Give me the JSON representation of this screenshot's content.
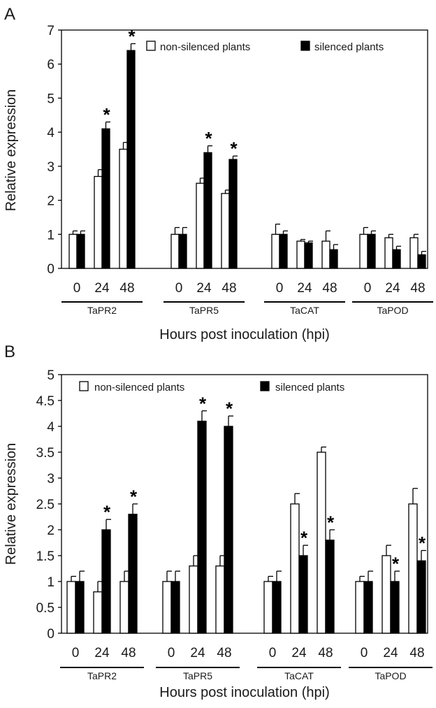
{
  "chart_data": [
    {
      "type": "bar",
      "panel_label": "A",
      "ylabel": "Relative expression",
      "xlabel": "Hours post inoculation (hpi)",
      "ylim": [
        0,
        7
      ],
      "yticks": [
        "0",
        "1",
        "2",
        "3",
        "4",
        "5",
        "6",
        "7"
      ],
      "grid": false,
      "legend_placement": "top",
      "legend": [
        {
          "name": "non-silenced plants",
          "fill": "#ffffff"
        },
        {
          "name": "silenced plants",
          "fill": "#000000"
        }
      ],
      "groups": [
        {
          "label": "TaPR2",
          "times": [
            "0",
            "24",
            "48"
          ],
          "series": [
            {
              "name": "non-silenced plants",
              "values": [
                1.0,
                2.7,
                3.5
              ],
              "errors": [
                0.1,
                0.2,
                0.2
              ]
            },
            {
              "name": "silenced plants",
              "values": [
                1.0,
                4.1,
                6.4
              ],
              "errors": [
                0.1,
                0.2,
                0.2
              ]
            }
          ],
          "significance": [
            "",
            "*",
            "*"
          ]
        },
        {
          "label": "TaPR5",
          "times": [
            "0",
            "24",
            "48"
          ],
          "series": [
            {
              "name": "non-silenced plants",
              "values": [
                1.0,
                2.5,
                2.2
              ],
              "errors": [
                0.2,
                0.15,
                0.1
              ]
            },
            {
              "name": "silenced plants",
              "values": [
                1.0,
                3.4,
                3.2
              ],
              "errors": [
                0.2,
                0.2,
                0.1
              ]
            }
          ],
          "significance": [
            "",
            "*",
            "*"
          ]
        },
        {
          "label": "TaCAT",
          "times": [
            "0",
            "24",
            "48"
          ],
          "series": [
            {
              "name": "non-silenced plants",
              "values": [
                1.0,
                0.8,
                0.8
              ],
              "errors": [
                0.3,
                0.05,
                0.3
              ]
            },
            {
              "name": "silenced plants",
              "values": [
                1.0,
                0.75,
                0.55
              ],
              "errors": [
                0.1,
                0.05,
                0.15
              ]
            }
          ],
          "significance": [
            "",
            "",
            ""
          ]
        },
        {
          "label": "TaPOD",
          "times": [
            "0",
            "24",
            "48"
          ],
          "series": [
            {
              "name": "non-silenced plants",
              "values": [
                1.0,
                0.9,
                0.9
              ],
              "errors": [
                0.2,
                0.1,
                0.1
              ]
            },
            {
              "name": "silenced plants",
              "values": [
                1.0,
                0.55,
                0.4
              ],
              "errors": [
                0.1,
                0.1,
                0.1
              ]
            }
          ],
          "significance": [
            "",
            "",
            ""
          ]
        }
      ]
    },
    {
      "type": "bar",
      "panel_label": "B",
      "ylabel": "Relative expression",
      "xlabel": "Hours post inoculation (hpi)",
      "ylim": [
        0,
        5
      ],
      "yticks": [
        "0",
        "0.5",
        "1",
        "1.5",
        "2",
        "2.5",
        "3",
        "3.5",
        "4",
        "4.5",
        "5"
      ],
      "grid": false,
      "legend_placement": "top",
      "legend": [
        {
          "name": "non-silenced plants",
          "fill": "#ffffff"
        },
        {
          "name": "silenced plants",
          "fill": "#000000"
        }
      ],
      "groups": [
        {
          "label": "TaPR2",
          "times": [
            "0",
            "24",
            "48"
          ],
          "series": [
            {
              "name": "non-silenced plants",
              "values": [
                1.0,
                0.8,
                1.0
              ],
              "errors": [
                0.1,
                0.2,
                0.2
              ]
            },
            {
              "name": "silenced plants",
              "values": [
                1.0,
                2.0,
                2.3
              ],
              "errors": [
                0.2,
                0.2,
                0.2
              ]
            }
          ],
          "significance": [
            "",
            "*",
            "*"
          ]
        },
        {
          "label": "TaPR5",
          "times": [
            "0",
            "24",
            "48"
          ],
          "series": [
            {
              "name": "non-silenced plants",
              "values": [
                1.0,
                1.3,
                1.3
              ],
              "errors": [
                0.2,
                0.2,
                0.2
              ]
            },
            {
              "name": "silenced plants",
              "values": [
                1.0,
                4.1,
                4.0
              ],
              "errors": [
                0.2,
                0.2,
                0.2
              ]
            }
          ],
          "significance": [
            "",
            "*",
            "*"
          ]
        },
        {
          "label": "TaCAT",
          "times": [
            "0",
            "24",
            "48"
          ],
          "series": [
            {
              "name": "non-silenced plants",
              "values": [
                1.0,
                2.5,
                3.5
              ],
              "errors": [
                0.1,
                0.2,
                0.1
              ]
            },
            {
              "name": "silenced plants",
              "values": [
                1.0,
                1.5,
                1.8
              ],
              "errors": [
                0.2,
                0.2,
                0.2
              ]
            }
          ],
          "significance": [
            "",
            "*",
            "*"
          ]
        },
        {
          "label": "TaPOD",
          "times": [
            "0",
            "24",
            "48"
          ],
          "series": [
            {
              "name": "non-silenced plants",
              "values": [
                1.0,
                1.5,
                2.5
              ],
              "errors": [
                0.1,
                0.2,
                0.3
              ]
            },
            {
              "name": "silenced plants",
              "values": [
                1.0,
                1.0,
                1.4
              ],
              "errors": [
                0.2,
                0.2,
                0.2
              ]
            }
          ],
          "significance": [
            "",
            "*",
            "*"
          ]
        }
      ]
    }
  ]
}
